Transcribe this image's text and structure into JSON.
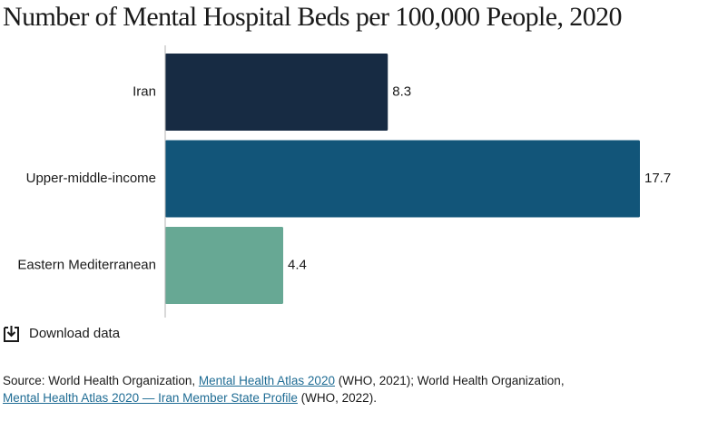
{
  "title": "Number of Mental Hospital Beds per 100,000 People, 2020",
  "colors": {
    "iran": "#172b43",
    "upper_middle_income": "#125579",
    "eastern_mediterranean": "#67a894",
    "axis": "#b3b3b3",
    "link": "#1f6c94"
  },
  "chart_data": {
    "type": "bar",
    "orientation": "horizontal",
    "categories": [
      "Iran",
      "Upper-middle-income",
      "Eastern Mediterranean"
    ],
    "values": [
      8.3,
      17.7,
      4.4
    ],
    "value_labels": [
      "8.3",
      "17.7",
      "4.4"
    ],
    "xlim": [
      0,
      17.7
    ],
    "grid": false,
    "legend": "none"
  },
  "download": {
    "icon": "download-icon",
    "label": "Download data"
  },
  "source": {
    "prefix": "Source: World Health Organization, ",
    "link1": "Mental Health Atlas 2020",
    "mid1": " (WHO, 2021); World Health Organization, ",
    "link2": "Mental Health Atlas 2020 — Iran Member State Profile",
    "suffix": " (WHO, 2022)."
  }
}
